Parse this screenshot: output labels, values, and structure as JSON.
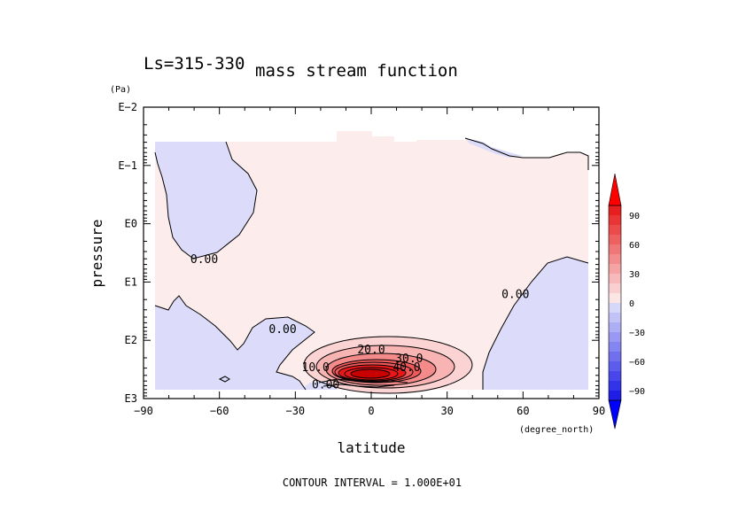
{
  "chart_data": {
    "type": "contour",
    "title_left": "Ls=315-330",
    "title": "mass stream function",
    "xlabel": "latitude",
    "x_unit": "(degree_north)",
    "ylabel": "pressure",
    "y_unit": "(Pa)",
    "xlim": [
      -90,
      90
    ],
    "ylim": [
      "E-2",
      "E3"
    ],
    "y_scale": "log",
    "x_ticks": [
      {
        "label": "−90",
        "value": -90
      },
      {
        "label": "−60",
        "value": -60
      },
      {
        "label": "−30",
        "value": -30
      },
      {
        "label": "0",
        "value": 0
      },
      {
        "label": "30",
        "value": 30
      },
      {
        "label": "60",
        "value": 60
      },
      {
        "label": "90",
        "value": 90
      }
    ],
    "y_ticks": [
      {
        "label": "E−2",
        "exp": -2
      },
      {
        "label": "E−1",
        "exp": -1
      },
      {
        "label": "E0",
        "exp": 0
      },
      {
        "label": "E1",
        "exp": 1
      },
      {
        "label": "E2",
        "exp": 2
      },
      {
        "label": "E3",
        "exp": 3
      }
    ],
    "contour_labels": [
      {
        "text": "0.00",
        "lat": -66,
        "exp": 0.6
      },
      {
        "text": "0.00",
        "lat": -35,
        "exp": 1.8
      },
      {
        "text": "0.00",
        "lat": 57,
        "exp": 1.2
      },
      {
        "text": "20.0",
        "lat": 0,
        "exp": 2.15
      },
      {
        "text": "30.0",
        "lat": 15,
        "exp": 2.3
      },
      {
        "text": "40.0",
        "lat": 14,
        "exp": 2.45
      },
      {
        "text": "10.0",
        "lat": -22,
        "exp": 2.45
      },
      {
        "text": "0.00",
        "lat": -18,
        "exp": 2.75
      }
    ],
    "contour_interval_text": "CONTOUR INTERVAL = 1.000E+01",
    "colorbar": {
      "labels": [
        "90",
        "60",
        "30",
        "0",
        "−30",
        "−60",
        "−90"
      ],
      "levels": [
        90,
        60,
        30,
        0,
        -30,
        -60,
        -90
      ],
      "positive_color": "#ff0000",
      "negative_color": "#0000ff"
    },
    "colors": {
      "weak_positive": "#fdecec",
      "weak_negative": "#dcdcfa",
      "strong_positive": "#e81818",
      "strong_negative": "#1414e8"
    }
  }
}
